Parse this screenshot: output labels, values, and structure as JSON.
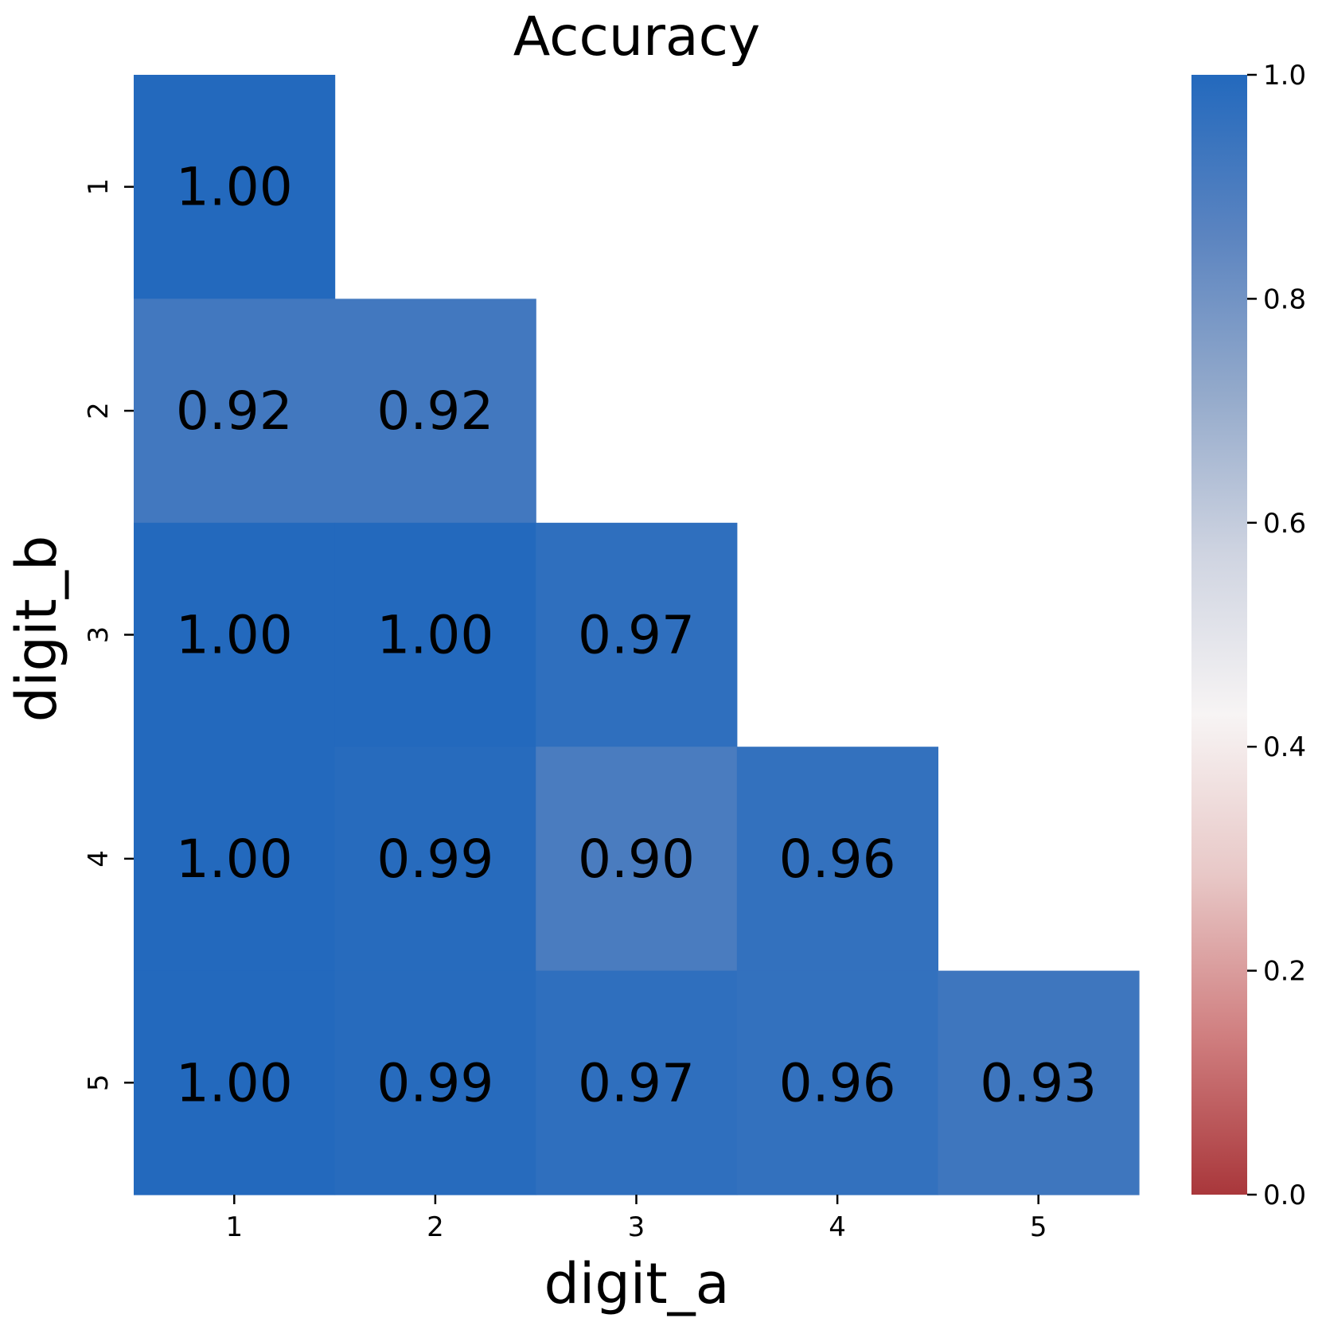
{
  "chart_data": {
    "type": "heatmap",
    "title": "Accuracy",
    "xlabel": "digit_a",
    "ylabel": "digit_b",
    "x_categories": [
      "1",
      "2",
      "3",
      "4",
      "5"
    ],
    "y_categories": [
      "1",
      "2",
      "3",
      "4",
      "5"
    ],
    "cells": [
      {
        "x": "1",
        "y": "1",
        "value": 1.0,
        "label": "1.00"
      },
      {
        "x": "1",
        "y": "2",
        "value": 0.92,
        "label": "0.92"
      },
      {
        "x": "2",
        "y": "2",
        "value": 0.92,
        "label": "0.92"
      },
      {
        "x": "1",
        "y": "3",
        "value": 1.0,
        "label": "1.00"
      },
      {
        "x": "2",
        "y": "3",
        "value": 1.0,
        "label": "1.00"
      },
      {
        "x": "3",
        "y": "3",
        "value": 0.97,
        "label": "0.97"
      },
      {
        "x": "1",
        "y": "4",
        "value": 1.0,
        "label": "1.00"
      },
      {
        "x": "2",
        "y": "4",
        "value": 0.99,
        "label": "0.99"
      },
      {
        "x": "3",
        "y": "4",
        "value": 0.9,
        "label": "0.90"
      },
      {
        "x": "4",
        "y": "4",
        "value": 0.96,
        "label": "0.96"
      },
      {
        "x": "1",
        "y": "5",
        "value": 1.0,
        "label": "1.00"
      },
      {
        "x": "2",
        "y": "5",
        "value": 0.99,
        "label": "0.99"
      },
      {
        "x": "3",
        "y": "5",
        "value": 0.97,
        "label": "0.97"
      },
      {
        "x": "4",
        "y": "5",
        "value": 0.96,
        "label": "0.96"
      },
      {
        "x": "5",
        "y": "5",
        "value": 0.93,
        "label": "0.93"
      }
    ],
    "colorbar": {
      "range": [
        0.0,
        1.0
      ],
      "ticks": [
        "0.0",
        "0.2",
        "0.4",
        "0.6",
        "0.8",
        "1.0"
      ],
      "colormap": "vlag_r",
      "color_stops": [
        "#a9373b",
        "#d07f80",
        "#e8c8c7",
        "#f7f4f4",
        "#cfd4e1",
        "#94aacb",
        "#5b84c0",
        "#2369bd"
      ]
    },
    "grid": false
  }
}
